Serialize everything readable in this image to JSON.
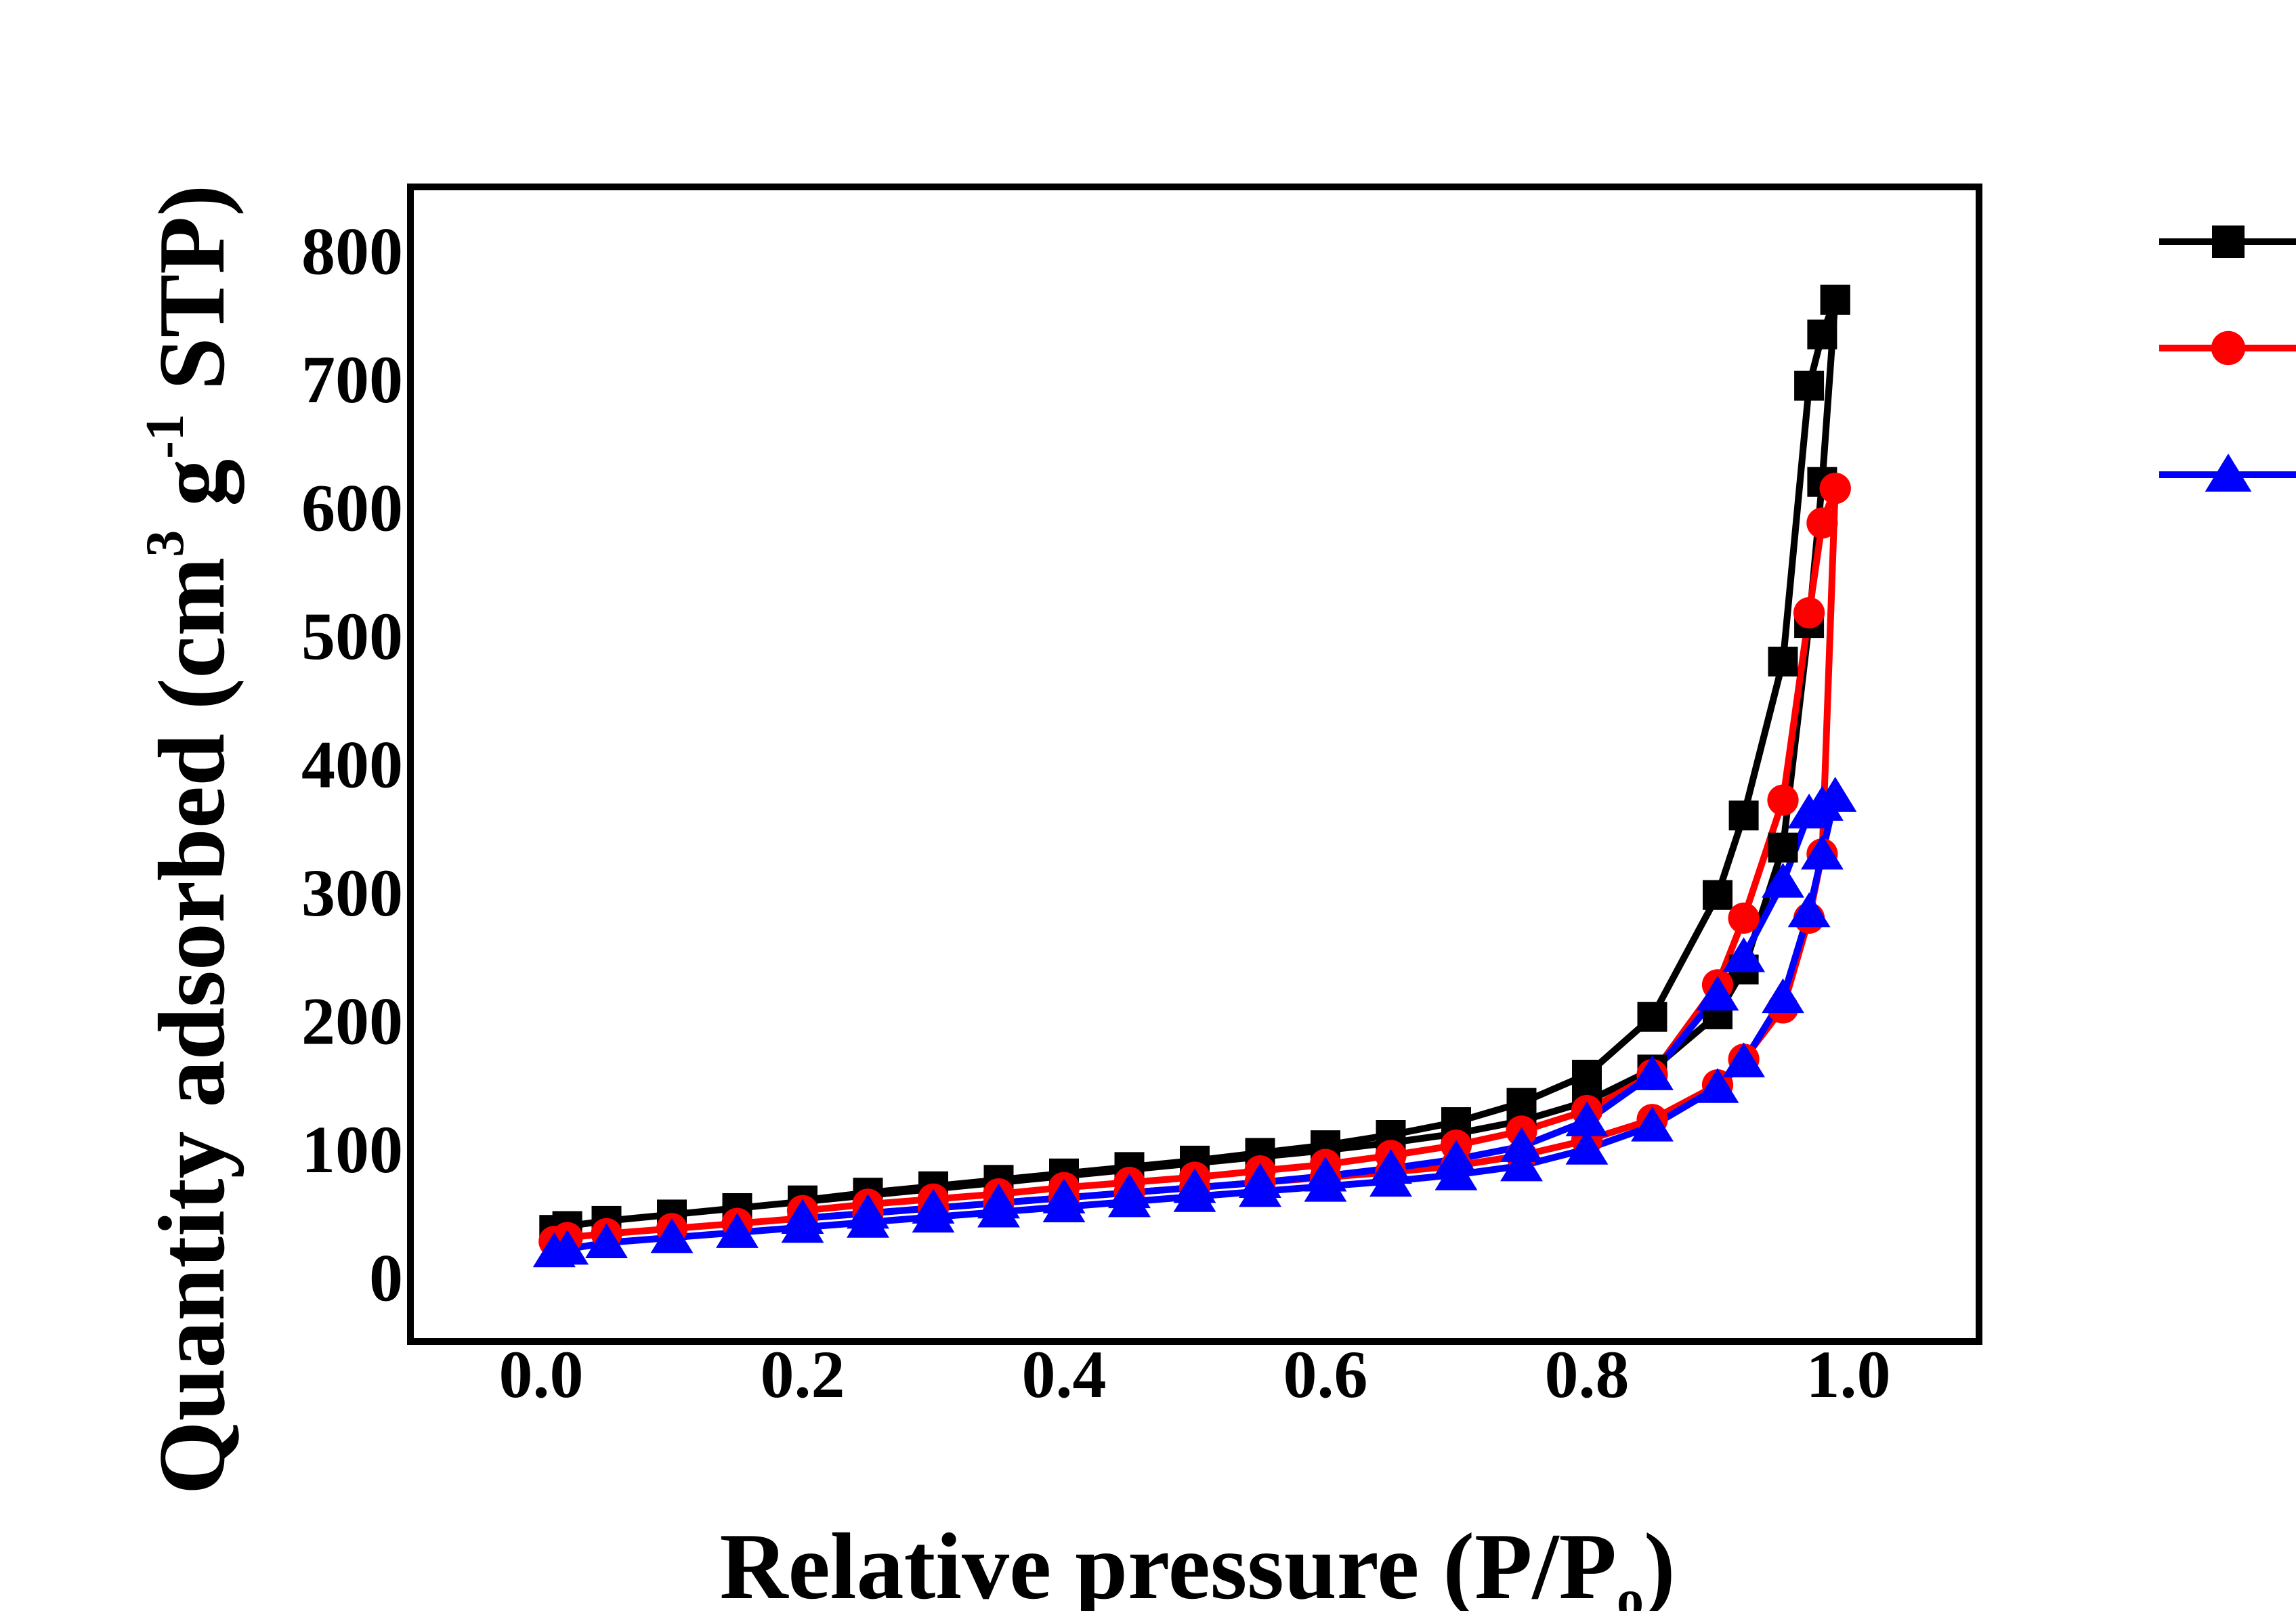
{
  "chart_data": {
    "type": "line",
    "title": "",
    "xlabel": {
      "main": "Relative pressure (P/P",
      "sub": "o",
      "end": ")"
    },
    "ylabel": {
      "part1": "Quantity adsorbed (cm",
      "sup1": "3",
      "part2": " g",
      "sup2": "-1",
      "part3": " STP)"
    },
    "xlim": [
      -0.1,
      1.1
    ],
    "ylim": [
      -50,
      850
    ],
    "xticks": [
      0.0,
      0.2,
      0.4,
      0.6,
      0.8,
      1.0
    ],
    "xtick_labels": [
      "0.0",
      "0.2",
      "0.4",
      "0.6",
      "0.8",
      "1.0"
    ],
    "yticks": [
      0,
      100,
      200,
      300,
      400,
      500,
      600,
      700,
      800
    ],
    "ytick_labels": [
      "0",
      "100",
      "200",
      "300",
      "400",
      "500",
      "600",
      "700",
      "800"
    ],
    "grid": false,
    "legend_placement": "right, outside plot",
    "series": [
      {
        "color": "#000000",
        "marker": "square",
        "adsorption": {
          "x": [
            0.01,
            0.02,
            0.05,
            0.1,
            0.15,
            0.2,
            0.25,
            0.3,
            0.35,
            0.4,
            0.45,
            0.5,
            0.55,
            0.6,
            0.65,
            0.7,
            0.75,
            0.8,
            0.85,
            0.9,
            0.92,
            0.95,
            0.97,
            0.98,
            0.99
          ],
          "y": [
            37,
            40,
            44,
            49,
            54,
            59,
            64,
            69,
            74,
            79,
            84,
            89,
            94,
            99,
            105,
            112,
            122,
            137,
            162,
            205,
            240,
            335,
            510,
            620,
            762
          ]
        },
        "desorption": {
          "x": [
            0.99,
            0.98,
            0.97,
            0.95,
            0.92,
            0.9,
            0.85,
            0.8,
            0.75,
            0.7,
            0.65,
            0.6,
            0.55,
            0.5,
            0.45,
            0.4,
            0.35,
            0.3,
            0.25,
            0.2
          ],
          "y": [
            762,
            735,
            695,
            480,
            360,
            298,
            203,
            158,
            136,
            121,
            111,
            103,
            97,
            91,
            86,
            81,
            76,
            71,
            66,
            60
          ]
        }
      },
      {
        "color": "#ff0000",
        "marker": "circle",
        "adsorption": {
          "x": [
            0.01,
            0.02,
            0.05,
            0.1,
            0.15,
            0.2,
            0.25,
            0.3,
            0.35,
            0.4,
            0.45,
            0.5,
            0.55,
            0.6,
            0.65,
            0.7,
            0.75,
            0.8,
            0.85,
            0.9,
            0.92,
            0.95,
            0.97,
            0.98,
            0.99
          ],
          "y": [
            28,
            31,
            34,
            38,
            42,
            46,
            50,
            54,
            58,
            62,
            66,
            70,
            74,
            78,
            82,
            87,
            95,
            107,
            123,
            150,
            170,
            210,
            280,
            330,
            615
          ]
        },
        "desorption": {
          "x": [
            0.99,
            0.98,
            0.97,
            0.95,
            0.92,
            0.9,
            0.85,
            0.8,
            0.75,
            0.7,
            0.65,
            0.6,
            0.55,
            0.5,
            0.45,
            0.4,
            0.35,
            0.3,
            0.25,
            0.2
          ],
          "y": [
            615,
            588,
            518,
            372,
            280,
            228,
            158,
            130,
            114,
            103,
            95,
            88,
            83,
            78,
            74,
            70,
            65,
            61,
            57,
            52
          ]
        }
      },
      {
        "color": "#0000ff",
        "marker": "triangle",
        "adsorption": {
          "x": [
            0.01,
            0.02,
            0.05,
            0.1,
            0.15,
            0.2,
            0.25,
            0.3,
            0.35,
            0.4,
            0.45,
            0.5,
            0.55,
            0.6,
            0.65,
            0.7,
            0.75,
            0.8,
            0.85,
            0.9,
            0.92,
            0.95,
            0.97,
            0.98,
            0.99
          ],
          "y": [
            20,
            22,
            27,
            31,
            35,
            39,
            43,
            47,
            51,
            55,
            59,
            63,
            67,
            71,
            75,
            80,
            87,
            100,
            118,
            148,
            168,
            218,
            285,
            330,
            375
          ]
        },
        "desorption": {
          "x": [
            0.99,
            0.98,
            0.97,
            0.95,
            0.92,
            0.9,
            0.85,
            0.8,
            0.75,
            0.7,
            0.65,
            0.6,
            0.55,
            0.5,
            0.45,
            0.4,
            0.35,
            0.3,
            0.25,
            0.2
          ],
          "y": [
            375,
            368,
            362,
            308,
            250,
            220,
            158,
            122,
            102,
            92,
            85,
            79,
            74,
            70,
            66,
            62,
            58,
            54,
            50,
            46
          ]
        }
      }
    ]
  }
}
